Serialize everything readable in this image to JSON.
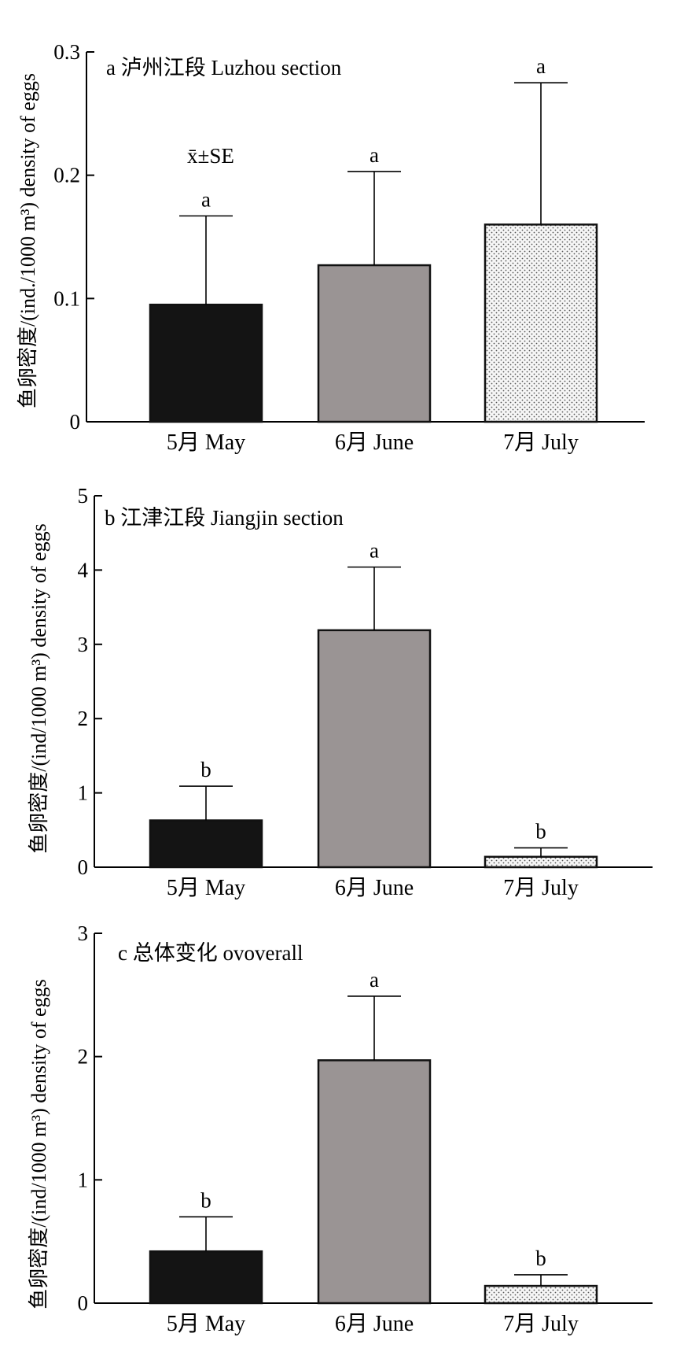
{
  "figure": {
    "ylabel": "鱼卵密度/(ind./1000 m³) density of eggs"
  },
  "chart_data": [
    {
      "type": "bar",
      "title": "a 泸州江段 Luzhou section",
      "annotation": "x̄±SE",
      "ylabel": "鱼卵密度/(ind./1000 m³) density of eggs",
      "ylim": [
        0,
        0.3
      ],
      "yticks": [
        0,
        0.1,
        0.2,
        0.3
      ],
      "ytick_labels": [
        "0",
        "0.1",
        "0.2",
        "0.3"
      ],
      "categories": [
        "5月 May",
        "6月 June",
        "7月 July"
      ],
      "values": [
        0.095,
        0.127,
        0.16
      ],
      "errors": [
        0.072,
        0.076,
        0.115
      ],
      "significance": [
        "a",
        "a",
        "a"
      ],
      "bar_colors": [
        "#141414",
        "#9a9494",
        "#f2f2f2"
      ],
      "bar_patterns": [
        "solid",
        "solid",
        "dotted"
      ],
      "grid": false
    },
    {
      "type": "bar",
      "title": "b 江津江段 Jiangjin section",
      "ylabel": "鱼卵密度/(ind/1000 m³) density of eggs",
      "ylim": [
        0,
        5
      ],
      "yticks": [
        0,
        1,
        2,
        3,
        4,
        5
      ],
      "ytick_labels": [
        "0",
        "1",
        "2",
        "3",
        "4",
        "5"
      ],
      "categories": [
        "5月 May",
        "6月 June",
        "7月 July"
      ],
      "values": [
        0.63,
        3.19,
        0.14
      ],
      "errors": [
        0.46,
        0.85,
        0.12
      ],
      "significance": [
        "b",
        "a",
        "b"
      ],
      "bar_colors": [
        "#141414",
        "#9a9494",
        "#f2f2f2"
      ],
      "bar_patterns": [
        "solid",
        "solid",
        "dotted"
      ],
      "grid": false
    },
    {
      "type": "bar",
      "title": "c 总体变化 ovoverall",
      "ylabel": "鱼卵密度/(ind/1000 m³) density of eggs",
      "ylim": [
        0,
        3
      ],
      "yticks": [
        0,
        1,
        2,
        3
      ],
      "ytick_labels": [
        "0",
        "1",
        "2",
        "3"
      ],
      "categories": [
        "5月 May",
        "6月 June",
        "7月 July"
      ],
      "values": [
        0.42,
        1.97,
        0.14
      ],
      "errors": [
        0.28,
        0.52,
        0.09
      ],
      "significance": [
        "b",
        "a",
        "b"
      ],
      "bar_colors": [
        "#141414",
        "#9a9494",
        "#f2f2f2"
      ],
      "bar_patterns": [
        "solid",
        "solid",
        "dotted"
      ],
      "grid": false
    }
  ]
}
